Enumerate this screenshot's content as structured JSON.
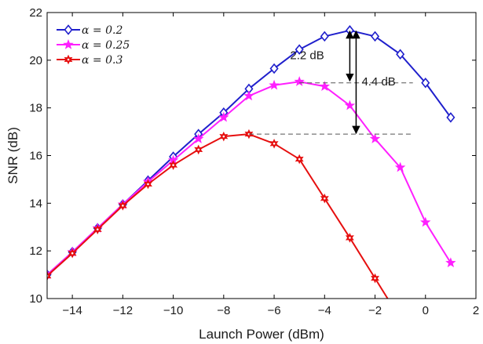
{
  "chart_data": {
    "type": "line",
    "xlabel": "Launch Power (dBm)",
    "ylabel": "SNR (dB)",
    "xlim": [
      -15,
      2
    ],
    "ylim": [
      10,
      22
    ],
    "xticks": [
      -14,
      -12,
      -10,
      -8,
      -6,
      -4,
      -2,
      0,
      2
    ],
    "yticks": [
      10,
      12,
      14,
      16,
      18,
      20,
      22
    ],
    "grid": false,
    "legend_position": "top-left",
    "series": [
      {
        "name": "α = 0.2",
        "color": "#1f1fcc",
        "marker": "diamond",
        "x": [
          -15,
          -14,
          -13,
          -12,
          -11,
          -10,
          -9,
          -8,
          -7,
          -6,
          -5,
          -4,
          -3,
          -2,
          -1,
          0,
          1
        ],
        "y": [
          11.0,
          11.95,
          12.95,
          13.95,
          14.95,
          15.95,
          16.9,
          17.8,
          18.8,
          19.65,
          20.45,
          21.0,
          21.25,
          21.0,
          20.25,
          19.05,
          17.6
        ]
      },
      {
        "name": "α = 0.25",
        "color": "#ff1fff",
        "marker": "star5",
        "x": [
          -15,
          -14,
          -13,
          -12,
          -11,
          -10,
          -9,
          -8,
          -7,
          -6,
          -5,
          -4,
          -3,
          -2,
          -1,
          0,
          1
        ],
        "y": [
          11.0,
          11.95,
          12.95,
          13.95,
          14.9,
          15.8,
          16.7,
          17.6,
          18.5,
          18.95,
          19.1,
          18.9,
          18.1,
          16.7,
          15.5,
          13.2,
          11.5
        ]
      },
      {
        "name": "α = 0.3",
        "color": "#e60f0f",
        "marker": "star6",
        "x": [
          -15,
          -14,
          -13,
          -12,
          -11,
          -10,
          -9,
          -8,
          -7,
          -6,
          -5,
          -4,
          -3,
          -2,
          -1.5
        ],
        "y": [
          10.95,
          11.9,
          12.9,
          13.9,
          14.8,
          15.6,
          16.25,
          16.8,
          16.9,
          16.5,
          15.85,
          14.2,
          12.55,
          10.85,
          10.0
        ]
      }
    ],
    "annotations": [
      {
        "text": "2.2 dB",
        "from": [
          -3,
          21.25
        ],
        "to": [
          -3,
          19.1
        ]
      },
      {
        "text": "4.4 dB",
        "from": [
          -2.75,
          21.25
        ],
        "to": [
          -2.75,
          16.9
        ]
      }
    ],
    "reference_lines": [
      {
        "y": 19.05,
        "x_from": -5,
        "x_to": -0.5
      },
      {
        "y": 16.9,
        "x_from": -7,
        "x_to": -0.5
      }
    ]
  }
}
